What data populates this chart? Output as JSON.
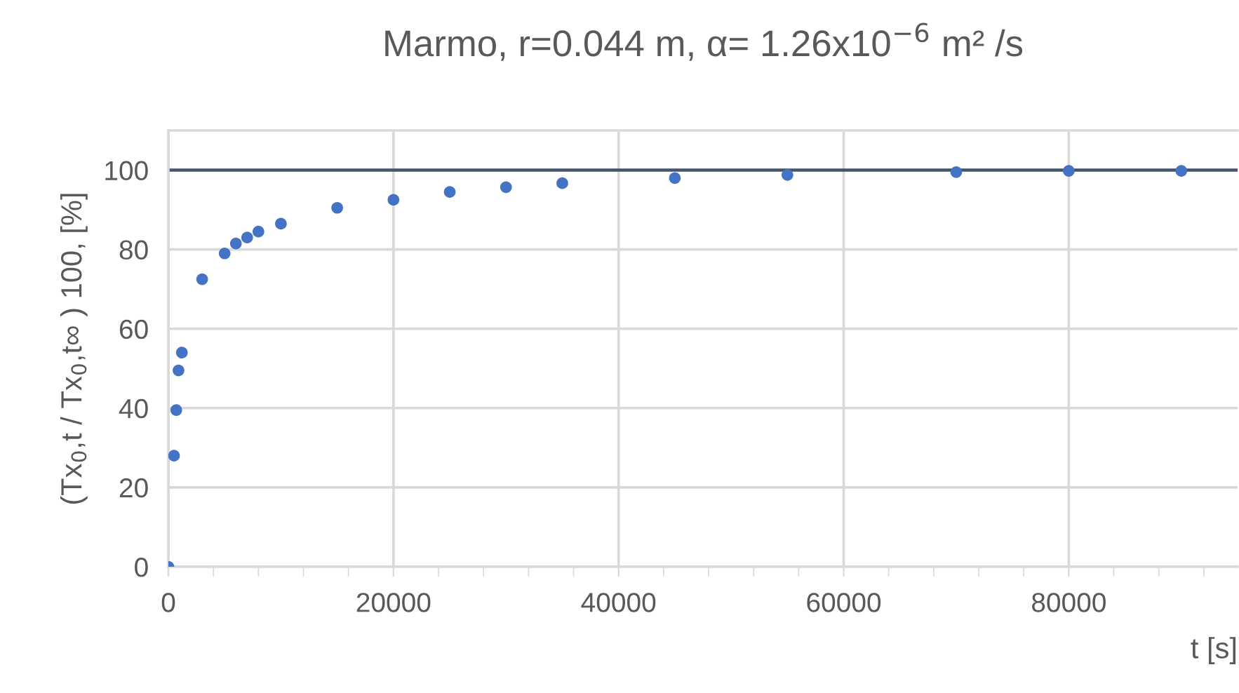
{
  "chart_data": {
    "type": "scatter",
    "title": "Marmo, r=0.044 m, α= 1.26x10$^{−6}$ m² /s",
    "xlabel": "t [s]",
    "ylabel": "(Tx$_{0}$,t / Tx$_{0}$,t∞ ) 100, [%]",
    "x": [
      0,
      500,
      700,
      900,
      1200,
      3000,
      5000,
      6000,
      7000,
      8000,
      10000,
      15000,
      20000,
      25000,
      30000,
      35000,
      45000,
      55000,
      70000,
      80000,
      90000
    ],
    "series": [
      {
        "color": "#4472c4",
        "values": [
          0,
          28,
          39.5,
          49.5,
          54,
          72.5,
          79,
          81.5,
          83,
          84.5,
          86.5,
          90.5,
          92.5,
          94.5,
          95.7,
          96.7,
          98,
          98.8,
          99.5,
          99.8,
          99.8
        ]
      }
    ],
    "xlim": [
      0,
      95000
    ],
    "xticks": [
      0,
      20000,
      40000,
      60000,
      80000
    ],
    "ylim": [
      0,
      110
    ],
    "yticks": [
      0,
      20,
      40,
      60,
      80,
      100
    ],
    "ref_lines": [
      {
        "axis": "y",
        "value": 100,
        "color": "#44546a"
      }
    ],
    "grid": true,
    "marker": "circle",
    "legend": false
  }
}
